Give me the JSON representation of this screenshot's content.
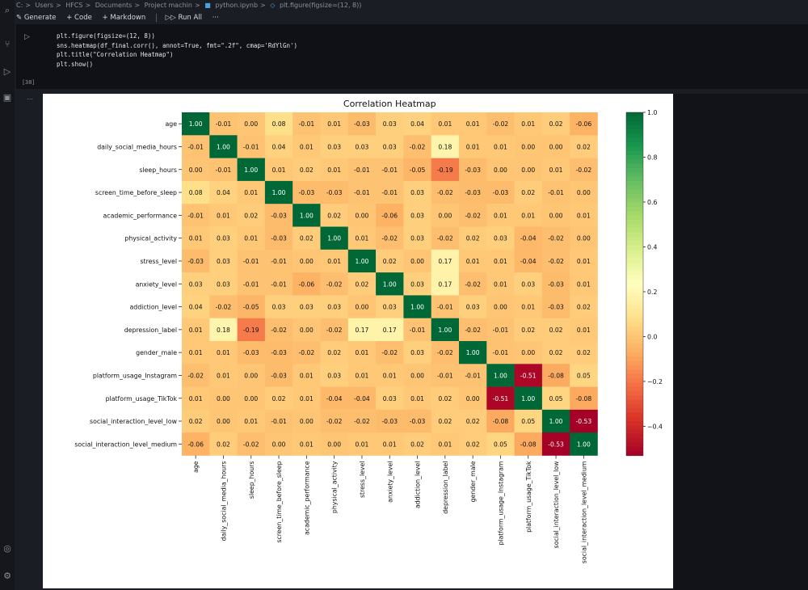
{
  "breadcrumb": [
    "C:",
    "Users",
    "HFCS",
    "Documents",
    "Project machin",
    "python.ipynb",
    "plt.figure(figsize=(12, 8))"
  ],
  "toolbar": {
    "generate_label": "Generate",
    "code_label": "+ Code",
    "markdown_label": "+ Markdown",
    "run_all_label": "Run All",
    "more_label": "···"
  },
  "code_lines": [
    "plt.figure(figsize=(12, 8))",
    "sns.heatmap(df_final.corr(), annot=True, fmt=\".2f\", cmap='RdYlGn')",
    "plt.title(\"Correlation Heatmap\")",
    "plt.show()"
  ],
  "exec_count": "[38]",
  "chart_data": {
    "type": "heatmap",
    "title": "Correlation Heatmap",
    "labels": [
      "age",
      "daily_social_media_hours",
      "sleep_hours",
      "screen_time_before_sleep",
      "academic_performance",
      "physical_activity",
      "stress_level",
      "anxiety_level",
      "addiction_level",
      "depression_label",
      "gender_male",
      "platform_usage_Instagram",
      "platform_usage_TikTok",
      "social_interaction_level_low",
      "social_interaction_level_medium"
    ],
    "values": [
      [
        1.0,
        -0.01,
        0.0,
        0.08,
        -0.01,
        0.01,
        -0.03,
        0.03,
        0.04,
        0.01,
        0.01,
        -0.02,
        0.01,
        0.02,
        -0.06
      ],
      [
        -0.01,
        1.0,
        -0.01,
        0.04,
        0.01,
        0.03,
        0.03,
        0.03,
        -0.02,
        0.18,
        0.01,
        0.01,
        -0.0,
        0.0,
        0.02
      ],
      [
        0.0,
        -0.01,
        1.0,
        0.01,
        0.02,
        0.01,
        -0.01,
        -0.01,
        -0.05,
        -0.19,
        -0.03,
        -0.0,
        -0.0,
        0.01,
        -0.02
      ],
      [
        0.08,
        0.04,
        0.01,
        1.0,
        -0.03,
        -0.03,
        -0.01,
        -0.01,
        0.03,
        -0.02,
        -0.03,
        -0.03,
        0.02,
        -0.01,
        -0.0
      ],
      [
        -0.01,
        0.01,
        0.02,
        -0.03,
        1.0,
        0.02,
        -0.0,
        -0.06,
        0.03,
        0.0,
        -0.02,
        0.01,
        0.01,
        -0.0,
        0.01
      ],
      [
        0.01,
        0.03,
        0.01,
        -0.03,
        0.02,
        1.0,
        0.01,
        -0.02,
        0.03,
        -0.02,
        0.02,
        0.03,
        -0.04,
        -0.02,
        -0.0
      ],
      [
        -0.03,
        0.03,
        -0.01,
        -0.01,
        -0.0,
        0.01,
        1.0,
        0.02,
        -0.0,
        0.17,
        0.01,
        0.01,
        -0.04,
        -0.02,
        0.01
      ],
      [
        0.03,
        0.03,
        -0.01,
        -0.01,
        -0.06,
        -0.02,
        0.02,
        1.0,
        0.03,
        0.17,
        -0.02,
        0.01,
        0.03,
        -0.03,
        0.01
      ],
      [
        0.04,
        -0.02,
        -0.05,
        0.03,
        0.03,
        0.03,
        -0.0,
        0.03,
        1.0,
        -0.01,
        0.03,
        0.0,
        0.01,
        -0.03,
        0.02
      ],
      [
        0.01,
        0.18,
        -0.19,
        -0.02,
        0.0,
        -0.02,
        0.17,
        0.17,
        -0.01,
        1.0,
        -0.02,
        -0.01,
        0.02,
        0.02,
        0.01
      ],
      [
        0.01,
        0.01,
        -0.03,
        -0.03,
        -0.02,
        0.02,
        0.01,
        -0.02,
        0.03,
        -0.02,
        1.0,
        -0.01,
        0.0,
        0.02,
        0.02
      ],
      [
        -0.02,
        0.01,
        -0.0,
        -0.03,
        0.01,
        0.03,
        0.01,
        0.01,
        0.0,
        -0.01,
        -0.01,
        1.0,
        -0.51,
        -0.08,
        0.05
      ],
      [
        0.01,
        -0.0,
        -0.0,
        0.02,
        0.01,
        -0.04,
        -0.04,
        0.03,
        0.01,
        0.02,
        0.0,
        -0.51,
        1.0,
        0.05,
        -0.08
      ],
      [
        0.02,
        0.0,
        0.01,
        -0.01,
        -0.0,
        -0.02,
        -0.02,
        -0.03,
        -0.03,
        0.02,
        0.02,
        -0.08,
        0.05,
        1.0,
        -0.53
      ],
      [
        -0.06,
        0.02,
        -0.02,
        -0.0,
        0.01,
        -0.0,
        0.01,
        0.01,
        0.02,
        0.01,
        0.02,
        0.05,
        -0.08,
        -0.53,
        1.0
      ]
    ],
    "colorbar_ticks": [
      "1.0",
      "0.8",
      "0.6",
      "0.4",
      "0.2",
      "0.0",
      "−0.2",
      "−0.4"
    ],
    "vmin": -0.53,
    "vmax": 1.0,
    "colormap": "RdYlGn",
    "colormap_stops": [
      "#a50026",
      "#d73027",
      "#f46d43",
      "#fdae61",
      "#fee08b",
      "#ffffbf",
      "#d9ef8b",
      "#a6d96a",
      "#66bd63",
      "#1a9850",
      "#006837"
    ]
  }
}
